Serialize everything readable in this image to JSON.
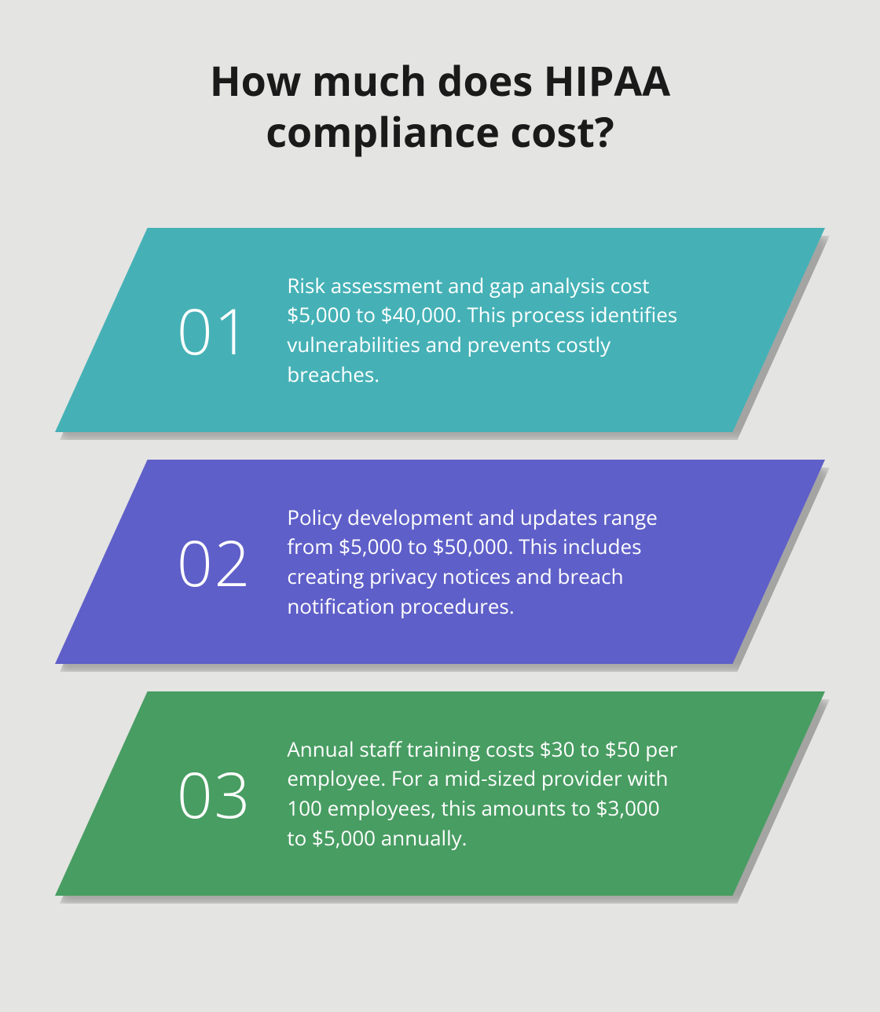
{
  "title": "How much does HIPAA compliance cost?",
  "title_fontsize": 52,
  "background_color": "#e4e4e2",
  "item_number_fontsize": 80,
  "item_text_fontsize": 26,
  "item_height": 260,
  "item_gap": 35,
  "skew_percent": 12,
  "items": [
    {
      "number": "01",
      "text": "Risk assessment and gap analysis cost $5,000 to $40,000. This process identifies vulnerabilities and prevents costly breaches.",
      "bg_color": "#45b1b6"
    },
    {
      "number": "02",
      "text": "Policy development and updates range from $5,000 to $50,000. This includes creating privacy notices and breach notification procedures.",
      "bg_color": "#5f5fc9"
    },
    {
      "number": "03",
      "text": "Annual staff training costs $30 to $50 per employee. For a mid-sized provider with 100 employees, this amounts to $3,000 to $5,000 annually.",
      "bg_color": "#489d62"
    }
  ]
}
